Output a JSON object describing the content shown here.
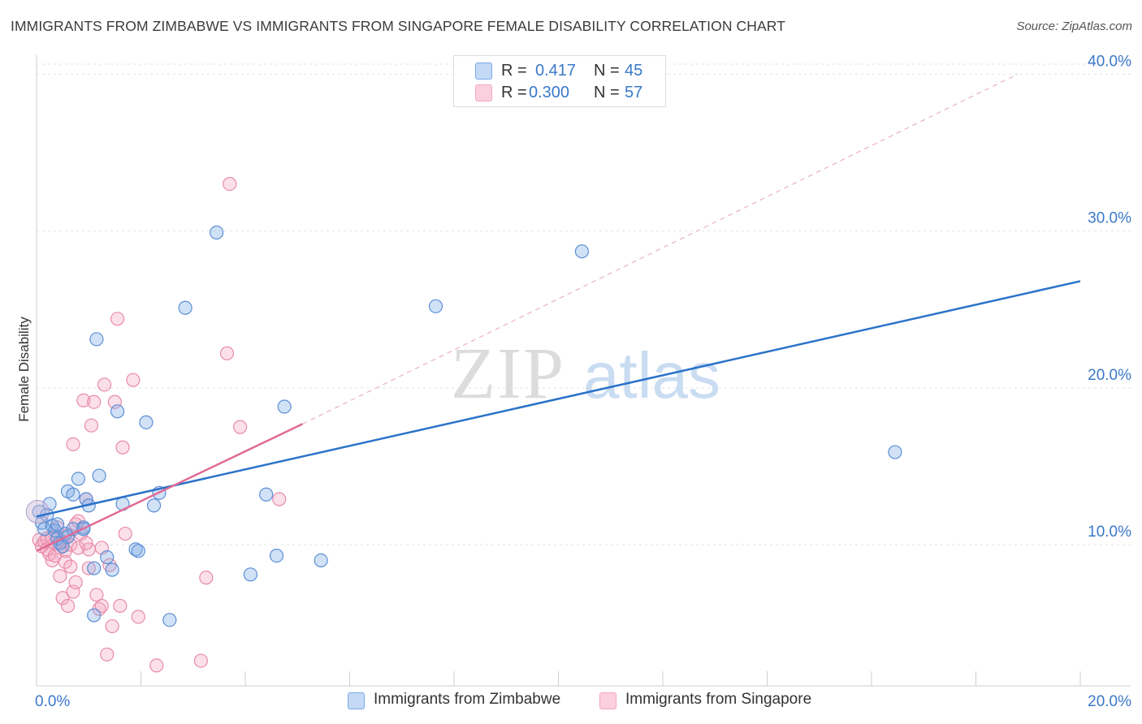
{
  "title": "IMMIGRANTS FROM ZIMBABWE VS IMMIGRANTS FROM SINGAPORE FEMALE DISABILITY CORRELATION CHART",
  "source": "Source: ZipAtlas.com",
  "watermark": {
    "zip": "ZIP",
    "atlas": "atlas"
  },
  "legend": {
    "rows": [
      {
        "r_label": "R =",
        "r_value": "0.417",
        "n_label": "N =",
        "n_value": "45"
      },
      {
        "r_label": "R =",
        "r_value": "0.300",
        "n_label": "N =",
        "n_value": "57"
      }
    ]
  },
  "chart_data": {
    "type": "scatter",
    "title": "IMMIGRANTS FROM ZIMBABWE VS IMMIGRANTS FROM SINGAPORE FEMALE DISABILITY CORRELATION CHART",
    "xlabel": "",
    "ylabel": "Female Disability",
    "xlim": [
      0,
      20
    ],
    "ylim": [
      1,
      41
    ],
    "x_tick_labels": [
      "0.0%",
      "20.0%"
    ],
    "y_ticks": [
      10,
      20,
      30,
      40
    ],
    "y_tick_labels": [
      "10.0%",
      "20.0%",
      "30.0%",
      "40.0%"
    ],
    "grid": true,
    "legend_position": "top-center",
    "series": [
      {
        "name": "Immigrants from Zimbabwe",
        "color": "#7aa8e6",
        "stroke": "#5b8fd6",
        "trend_color": "#2a72c9",
        "r": 0.417,
        "n": 45,
        "trend": {
          "x": [
            0,
            20
          ],
          "y": [
            11.8,
            26.8
          ]
        },
        "points": [
          [
            0.05,
            12.1
          ],
          [
            0.1,
            11.4
          ],
          [
            0.15,
            11.0
          ],
          [
            0.2,
            11.9
          ],
          [
            0.25,
            12.6
          ],
          [
            0.3,
            11.2
          ],
          [
            0.35,
            10.9
          ],
          [
            0.4,
            10.4
          ],
          [
            0.45,
            10.1
          ],
          [
            0.5,
            9.9
          ],
          [
            0.55,
            10.7
          ],
          [
            0.6,
            10.5
          ],
          [
            0.6,
            13.4
          ],
          [
            0.7,
            13.2
          ],
          [
            0.8,
            14.2
          ],
          [
            0.9,
            11.1
          ],
          [
            0.95,
            12.9
          ],
          [
            1.0,
            12.5
          ],
          [
            1.1,
            8.5
          ],
          [
            1.15,
            23.1
          ],
          [
            1.2,
            14.4
          ],
          [
            1.35,
            9.2
          ],
          [
            1.45,
            8.4
          ],
          [
            1.55,
            18.5
          ],
          [
            1.65,
            12.6
          ],
          [
            1.9,
            9.7
          ],
          [
            1.95,
            9.6
          ],
          [
            2.1,
            17.8
          ],
          [
            2.25,
            12.5
          ],
          [
            2.35,
            13.3
          ],
          [
            2.55,
            5.2
          ],
          [
            2.85,
            25.1
          ],
          [
            3.45,
            29.9
          ],
          [
            4.1,
            8.1
          ],
          [
            4.4,
            13.2
          ],
          [
            4.6,
            9.3
          ],
          [
            4.75,
            18.8
          ],
          [
            5.45,
            9.0
          ],
          [
            7.65,
            25.2
          ],
          [
            1.1,
            5.5
          ],
          [
            0.7,
            11.0
          ],
          [
            0.4,
            11.3
          ],
          [
            10.45,
            28.7
          ],
          [
            16.45,
            15.9
          ],
          [
            0.9,
            11.0
          ]
        ]
      },
      {
        "name": "Immigrants from Singapore",
        "color": "#f4a6c0",
        "stroke": "#e88aaa",
        "trend_color": "#e06a95",
        "r": 0.3,
        "n": 57,
        "trend": {
          "x": [
            0,
            5.1
          ],
          "y": [
            9.6,
            17.7
          ]
        },
        "dashed": {
          "x": [
            5.1,
            18.8
          ],
          "y": [
            17.7,
            40.0
          ]
        },
        "points": [
          [
            0.05,
            10.3
          ],
          [
            0.1,
            9.9
          ],
          [
            0.15,
            10.2
          ],
          [
            0.2,
            9.7
          ],
          [
            0.25,
            9.4
          ],
          [
            0.3,
            9.0
          ],
          [
            0.35,
            10.1
          ],
          [
            0.4,
            11.1
          ],
          [
            0.45,
            8.0
          ],
          [
            0.5,
            6.6
          ],
          [
            0.55,
            9.6
          ],
          [
            0.6,
            6.1
          ],
          [
            0.65,
            10.0
          ],
          [
            0.7,
            7.0
          ],
          [
            0.75,
            7.6
          ],
          [
            0.8,
            11.5
          ],
          [
            0.85,
            10.7
          ],
          [
            0.9,
            19.2
          ],
          [
            0.95,
            12.9
          ],
          [
            1.0,
            8.5
          ],
          [
            1.0,
            9.7
          ],
          [
            1.05,
            17.6
          ],
          [
            1.1,
            19.1
          ],
          [
            1.15,
            6.8
          ],
          [
            1.2,
            5.9
          ],
          [
            1.25,
            6.1
          ],
          [
            1.3,
            20.2
          ],
          [
            1.35,
            3.0
          ],
          [
            1.45,
            4.8
          ],
          [
            1.5,
            19.1
          ],
          [
            1.55,
            24.4
          ],
          [
            1.6,
            6.1
          ],
          [
            1.65,
            16.2
          ],
          [
            1.7,
            10.7
          ],
          [
            1.85,
            20.5
          ],
          [
            1.95,
            5.4
          ],
          [
            2.3,
            2.3
          ],
          [
            3.15,
            2.6
          ],
          [
            3.25,
            7.9
          ],
          [
            3.65,
            22.2
          ],
          [
            3.7,
            33.0
          ],
          [
            3.9,
            17.5
          ],
          [
            4.65,
            12.9
          ],
          [
            0.7,
            16.4
          ],
          [
            0.55,
            8.9
          ],
          [
            0.3,
            10.5
          ],
          [
            0.8,
            9.8
          ],
          [
            1.25,
            9.8
          ],
          [
            0.45,
            9.8
          ],
          [
            0.6,
            10.6
          ],
          [
            0.2,
            10.4
          ],
          [
            0.35,
            9.3
          ],
          [
            0.95,
            10.1
          ],
          [
            1.4,
            8.7
          ],
          [
            0.5,
            10.2
          ],
          [
            0.75,
            11.3
          ],
          [
            0.65,
            8.6
          ]
        ]
      }
    ]
  }
}
